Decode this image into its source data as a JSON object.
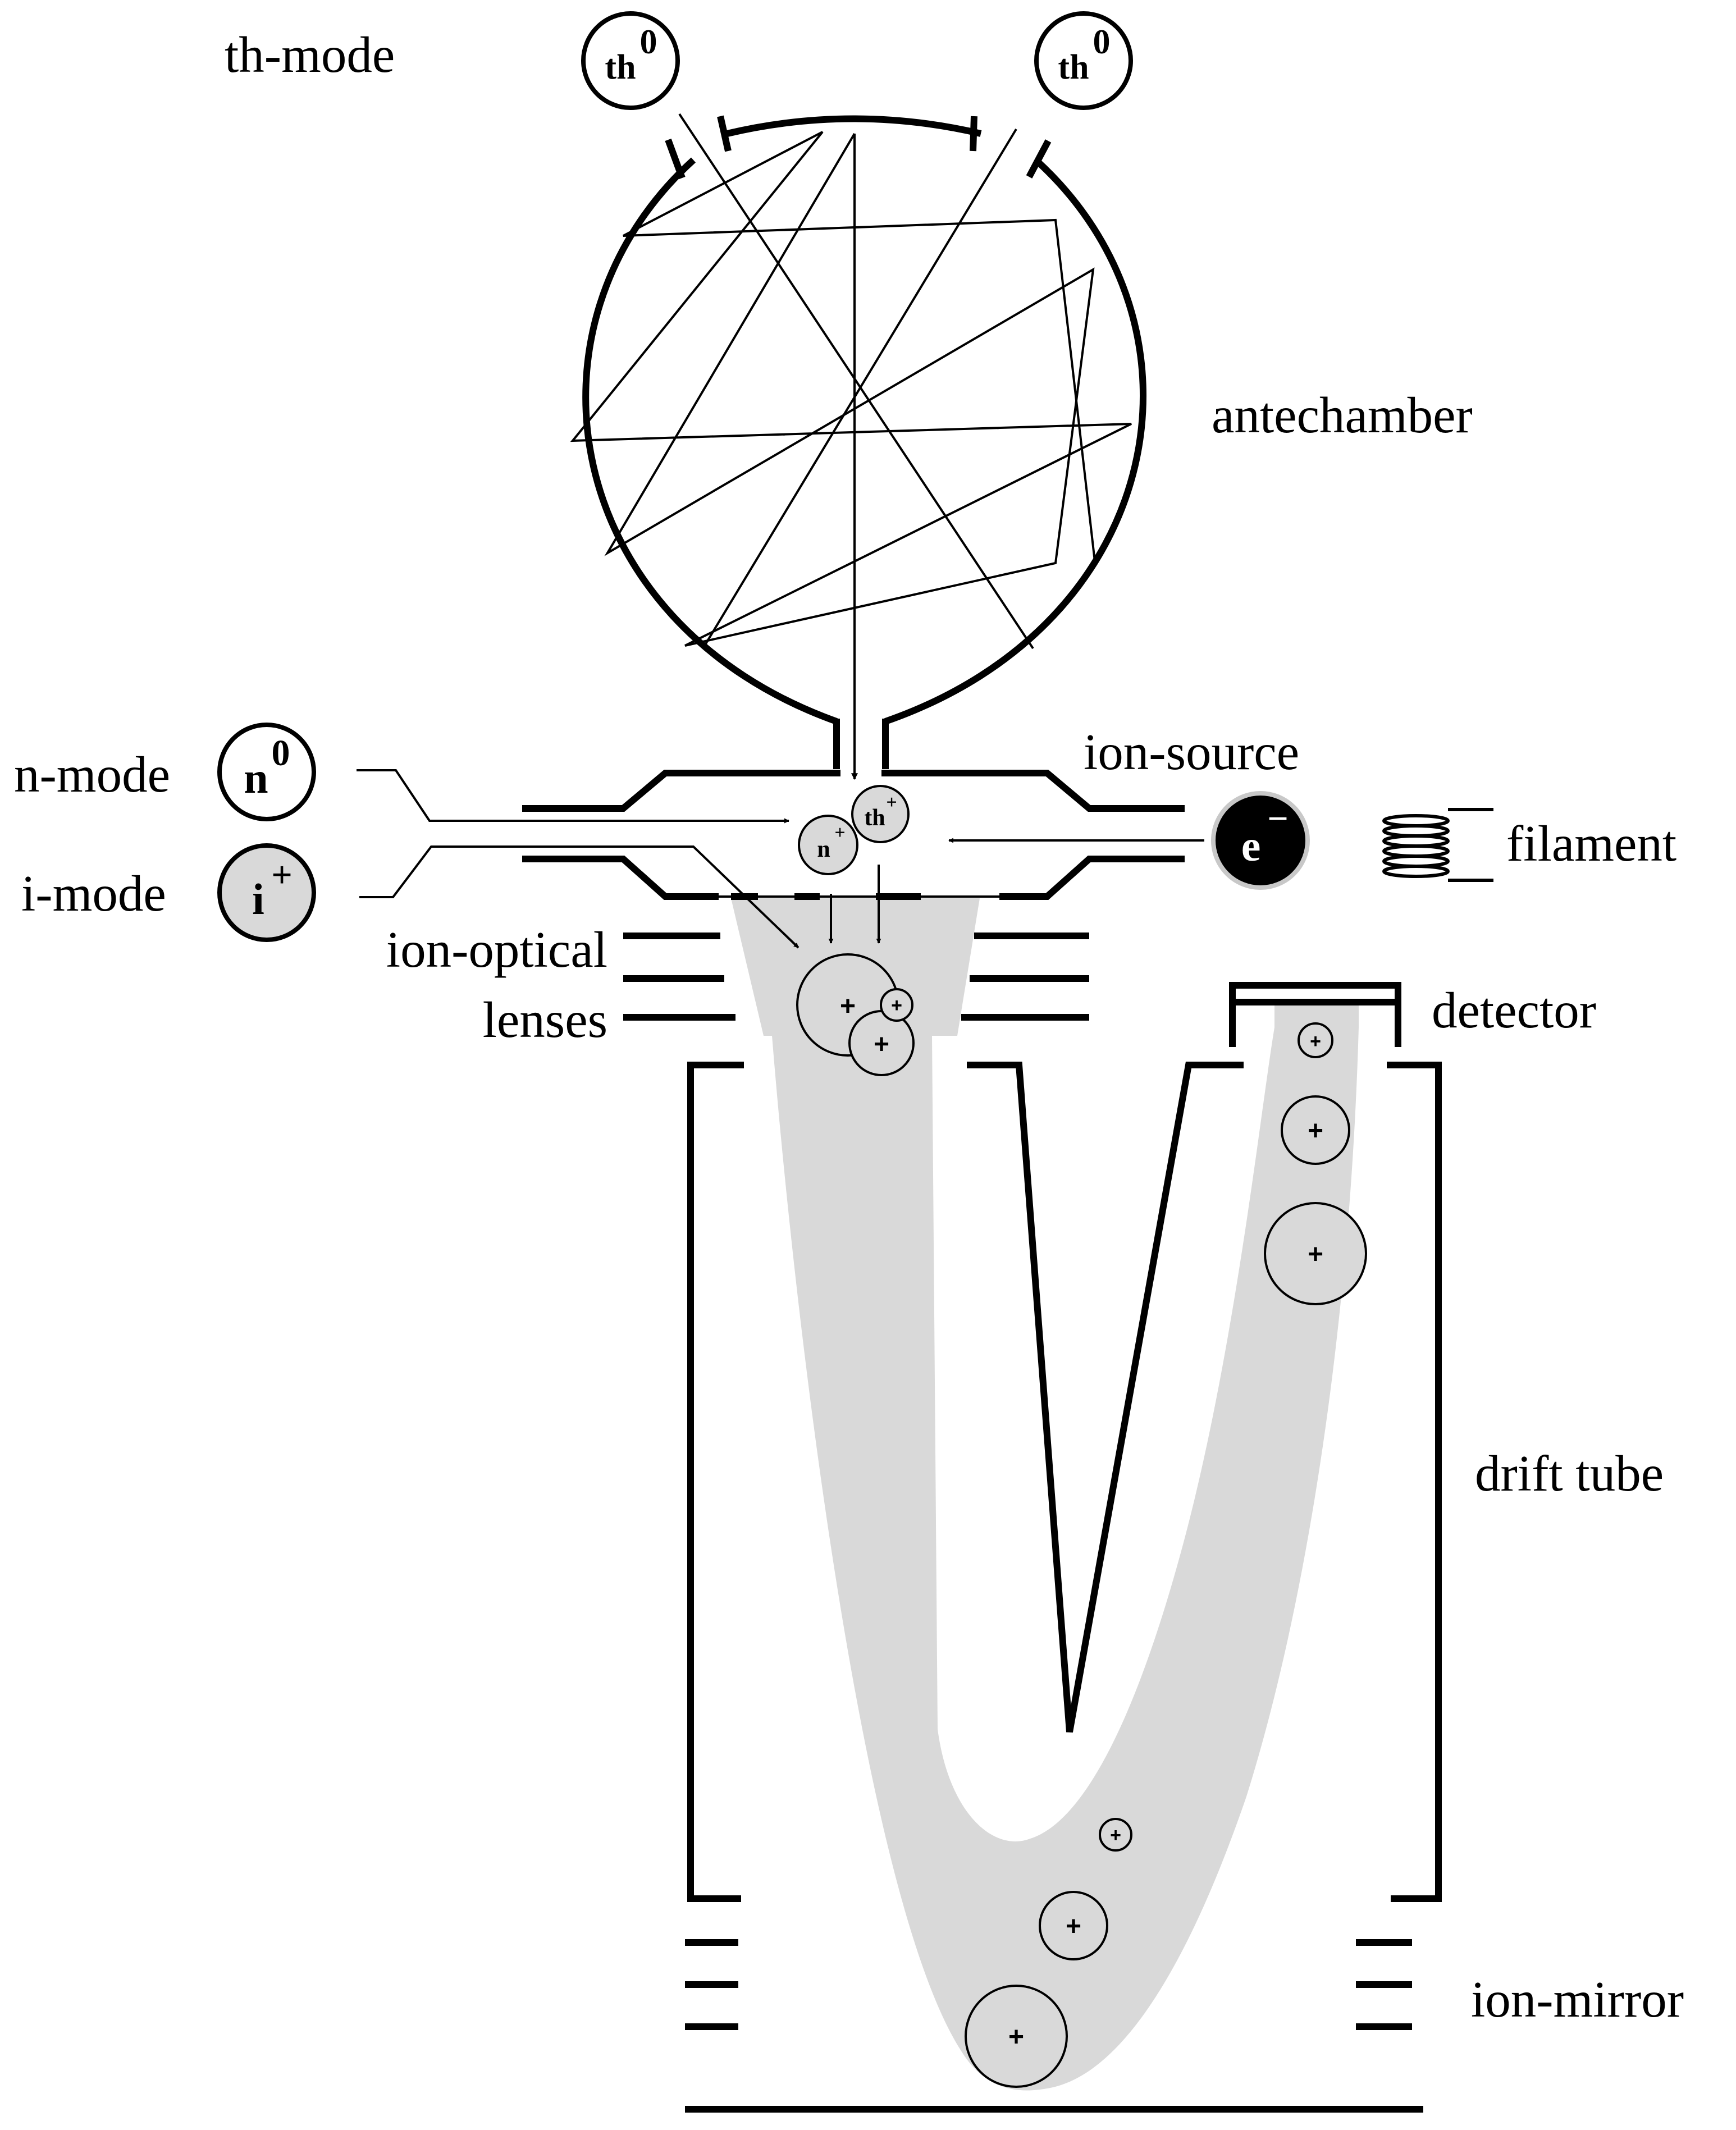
{
  "labels": {
    "th_mode": "th-mode",
    "antechamber": "antechamber",
    "ion_source": "ion-source",
    "n_mode": "n-mode",
    "i_mode": "i-mode",
    "filament": "filament",
    "ion_optical": "ion-optical",
    "lenses": "lenses",
    "detector": "detector",
    "drift_tube": "drift tube",
    "ion_mirror": "ion-mirror"
  },
  "symbols": {
    "thermal_neutral_base": "th",
    "thermal_neutral_sup": "0",
    "neutral_base": "n",
    "neutral_sup": "0",
    "ion_base": "i",
    "ion_sup": "+",
    "electron": "e",
    "electron_sup": "−",
    "thermal_ion_base": "th",
    "thermal_ion_sup": "+",
    "neutral_ion_base": "n",
    "neutral_ion_sup": "+",
    "positive": "+"
  },
  "colors": {
    "ink": "#000000",
    "ion_beam": "#d9d9d9",
    "background": "#ffffff"
  }
}
